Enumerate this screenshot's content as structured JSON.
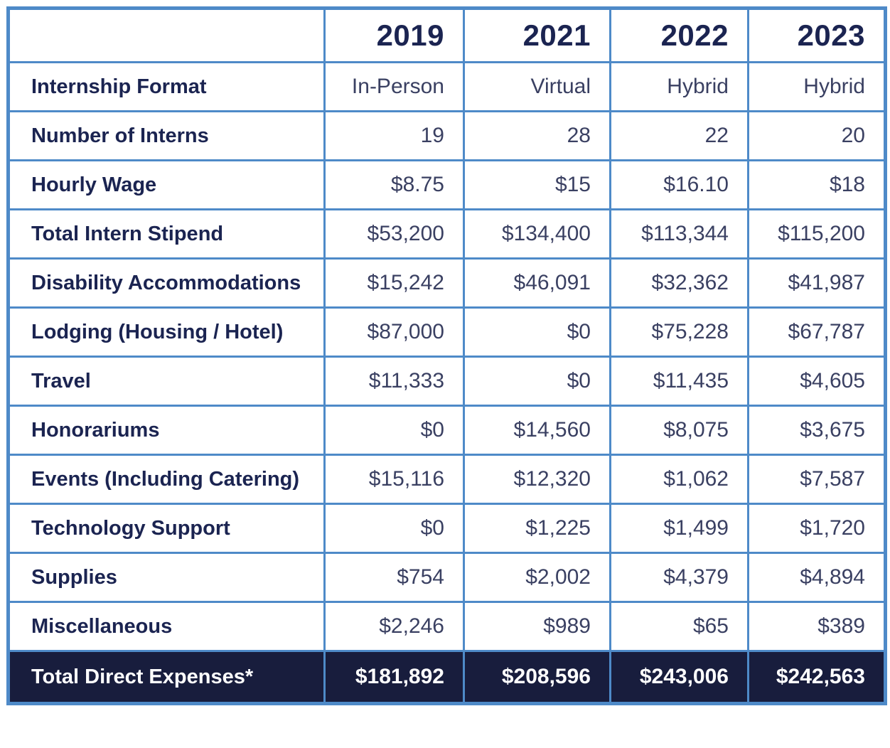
{
  "chart_data": {
    "type": "table",
    "columns": [
      "",
      "2019",
      "2021",
      "2022",
      "2023"
    ],
    "rows": [
      {
        "label": "Internship Format",
        "values": [
          "In-Person",
          "Virtual",
          "Hybrid",
          "Hybrid"
        ]
      },
      {
        "label": "Number of Interns",
        "values": [
          "19",
          "28",
          "22",
          "20"
        ]
      },
      {
        "label": "Hourly Wage",
        "values": [
          "$8.75",
          "$15",
          "$16.10",
          "$18"
        ]
      },
      {
        "label": "Total Intern Stipend",
        "values": [
          "$53,200",
          "$134,400",
          "$113,344",
          "$115,200"
        ]
      },
      {
        "label": "Disability Accommodations",
        "values": [
          "$15,242",
          "$46,091",
          "$32,362",
          "$41,987"
        ]
      },
      {
        "label": "Lodging (Housing / Hotel)",
        "values": [
          "$87,000",
          "$0",
          "$75,228",
          "$67,787"
        ]
      },
      {
        "label": "Travel",
        "values": [
          "$11,333",
          "$0",
          "$11,435",
          "$4,605"
        ]
      },
      {
        "label": "Honorariums",
        "values": [
          "$0",
          "$14,560",
          "$8,075",
          "$3,675"
        ]
      },
      {
        "label": "Events (Including Catering)",
        "values": [
          "$15,116",
          "$12,320",
          "$1,062",
          "$7,587"
        ]
      },
      {
        "label": "Technology Support",
        "values": [
          "$0",
          "$1,225",
          "$1,499",
          "$1,720"
        ]
      },
      {
        "label": "Supplies",
        "values": [
          "$754",
          "$2,002",
          "$4,379",
          "$4,894"
        ]
      },
      {
        "label": "Miscellaneous",
        "values": [
          "$2,246",
          "$989",
          "$65",
          "$389"
        ]
      }
    ],
    "total_row": {
      "label": "Total Direct Expenses*",
      "values": [
        "$181,892",
        "$208,596",
        "$243,006",
        "$242,563"
      ]
    }
  },
  "colors": {
    "border_blue": "#4e8ac8",
    "header_label_text": "#1b2451",
    "value_text": "#3a4062",
    "total_row_background": "#181d3d",
    "total_row_text": "#ffffff"
  }
}
